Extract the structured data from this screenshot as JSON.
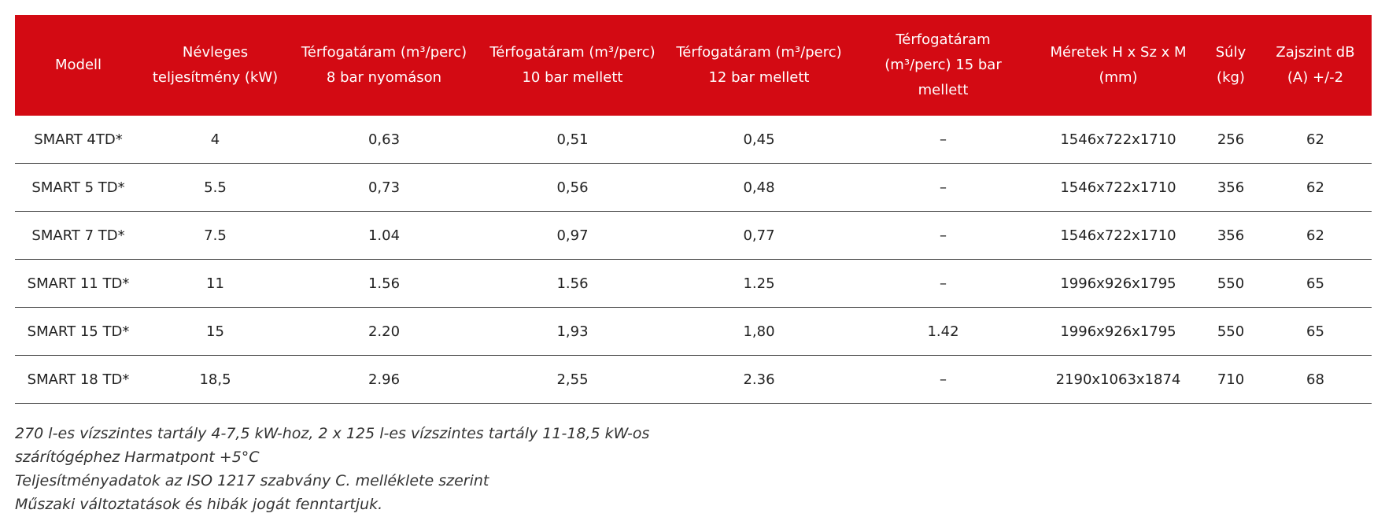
{
  "table": {
    "headers": [
      "Modell",
      "Névleges teljesítmény (kW)",
      "Térfogatáram (m³/perc) 8 bar nyomáson",
      "Térfogatáram (m³/perc) 10 bar mellett",
      "Térfogatáram (m³/perc) 12 bar mellett",
      "Térfogatáram (m³/perc) 15 bar mellett",
      "Méretek H x Sz x M (mm)",
      "Súly (kg)",
      "Zajszint dB (A) +/-2"
    ],
    "rows": [
      [
        "SMART 4TD*",
        "4",
        "0,63",
        "0,51",
        "0,45",
        "–",
        "1546x722x1710",
        "256",
        "62"
      ],
      [
        "SMART 5 TD*",
        "5.5",
        "0,73",
        "0,56",
        "0,48",
        "–",
        "1546x722x1710",
        "356",
        "62"
      ],
      [
        "SMART 7 TD*",
        "7.5",
        "1.04",
        "0,97",
        "0,77",
        "–",
        "1546x722x1710",
        "356",
        "62"
      ],
      [
        "SMART 11 TD*",
        "11",
        "1.56",
        "1.56",
        "1.25",
        "–",
        "1996x926x1795",
        "550",
        "65"
      ],
      [
        "SMART 15 TD*",
        "15",
        "2.20",
        "1,93",
        "1,80",
        "1.42",
        "1996x926x1795",
        "550",
        "65"
      ],
      [
        "SMART 18 TD*",
        "18,5",
        "2.96",
        "2,55",
        "2.36",
        "–",
        "2190x1063x1874",
        "710",
        "68"
      ]
    ]
  },
  "notes": [
    "270 l-es vízszintes tartály 4-7,5 kW-hoz, 2 x 125 l-es vízszintes tartály 11-18,5 kW-os",
    "szárítógéphez Harmatpont +5°C",
    "Teljesítményadatok az ISO 1217 szabvány C. melléklete szerint",
    "Műszaki változtatások és hibák jogát fenntartjuk."
  ]
}
